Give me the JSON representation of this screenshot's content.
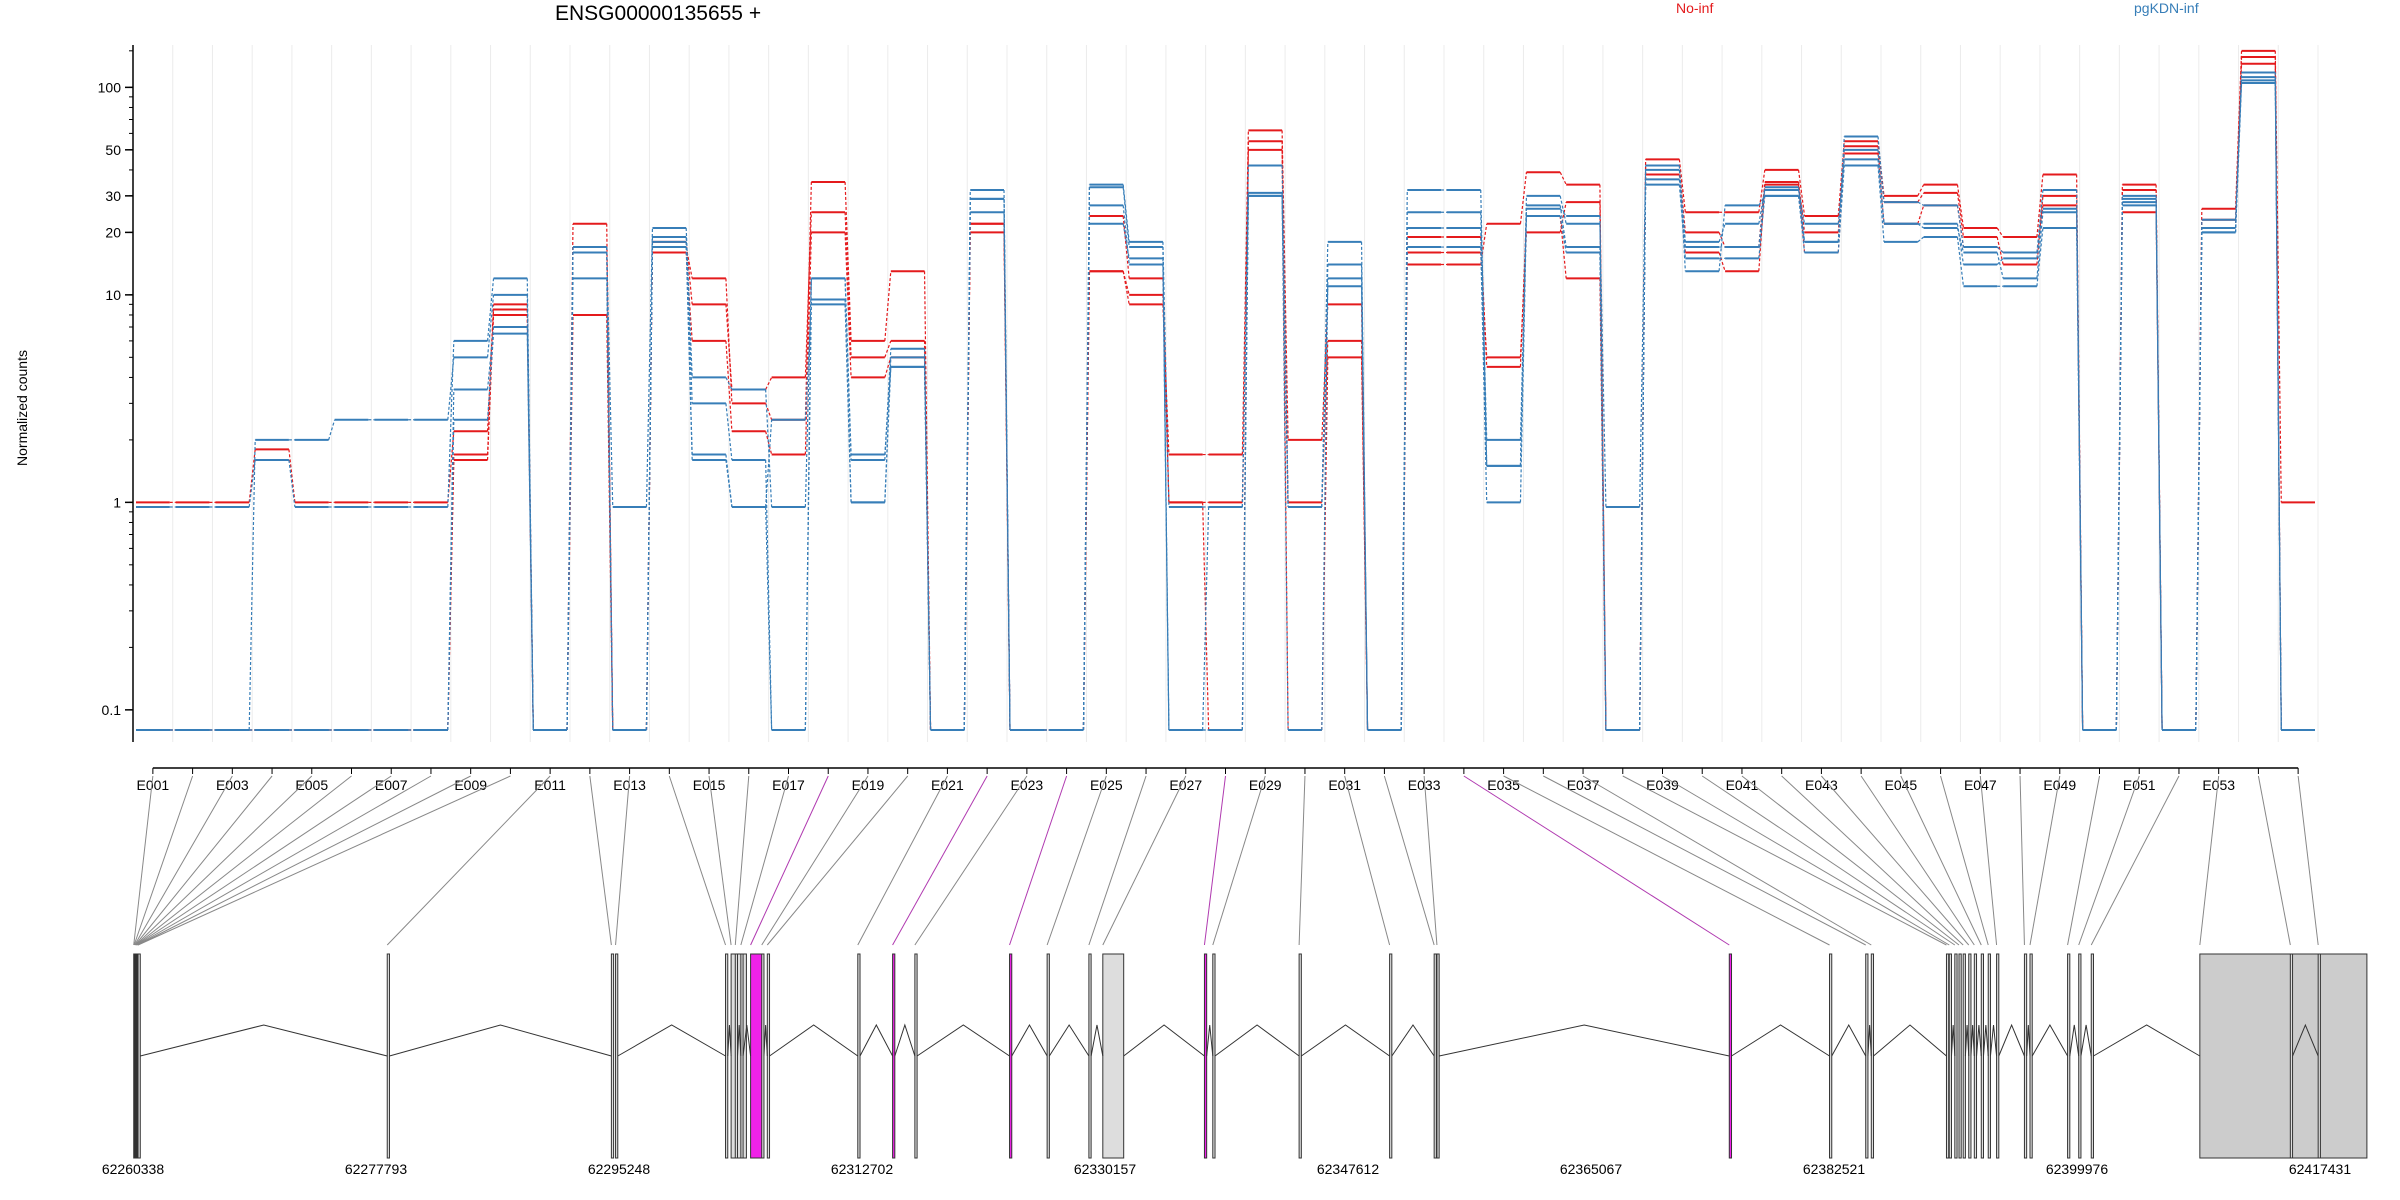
{
  "chart_data": {
    "type": "line",
    "title": "ENSG00000135655 +",
    "ylabel": "Normalized counts",
    "yscale": "log",
    "ylim": [
      0.07,
      160
    ],
    "y_ticks": [
      {
        "value": 0.1,
        "label": "0.1"
      },
      {
        "value": 1,
        "label": "1"
      },
      {
        "value": 10,
        "label": "10"
      },
      {
        "value": 20,
        "label": "20"
      },
      {
        "value": 30,
        "label": "30"
      },
      {
        "value": 50,
        "label": "50"
      },
      {
        "value": 100,
        "label": "100"
      }
    ],
    "x_tick_labels": [
      "E001",
      "E003",
      "E005",
      "E007",
      "E009",
      "E011",
      "E013",
      "E015",
      "E017",
      "E019",
      "E021",
      "E023",
      "E025",
      "E027",
      "E029",
      "E031",
      "E033",
      "E035",
      "E037",
      "E039",
      "E041",
      "E043",
      "E045",
      "E047",
      "E049",
      "E051",
      "E053"
    ],
    "legend": [
      {
        "name": "No-inf",
        "color": "#E41A1C"
      },
      {
        "name": "pgKDN-inf",
        "color": "#377EB8"
      }
    ],
    "series": [
      {
        "name": "No-inf",
        "color": "#E41A1C",
        "values": [
          1,
          1,
          1,
          1.8,
          1,
          1,
          1,
          1,
          2.2,
          9,
          0.08,
          22,
          0.08,
          17,
          12,
          3,
          2.5,
          35,
          6,
          13,
          0.08,
          22,
          0.08,
          0.08,
          13,
          9,
          1.7,
          1.7,
          62,
          2,
          9,
          0.08,
          14,
          14,
          22,
          39,
          34,
          0.08,
          45,
          25,
          25,
          40,
          24,
          55,
          30,
          34,
          21,
          19,
          38,
          0.08,
          34,
          0.08,
          26,
          150,
          1
        ]
      },
      {
        "name": "No-inf",
        "color": "#E41A1C",
        "values": [
          0.08,
          0.08,
          0.08,
          0.08,
          0.08,
          0.08,
          0.08,
          0.08,
          1.7,
          8.5,
          0.08,
          17,
          0.08,
          18,
          9,
          3.5,
          4,
          25,
          5,
          6,
          0.08,
          20,
          0.08,
          0.08,
          24,
          12,
          1,
          1,
          50,
          1,
          6,
          0.08,
          16,
          16,
          5,
          20,
          28,
          0.08,
          42,
          20,
          17,
          35,
          20,
          52,
          28,
          31,
          19,
          14,
          30,
          0.08,
          32,
          0.08,
          23,
          140,
          0.08
        ]
      },
      {
        "name": "No-inf",
        "color": "#E41A1C",
        "values": [
          0.08,
          0.08,
          0.08,
          0.08,
          0.08,
          0.08,
          0.08,
          0.08,
          1.6,
          8,
          0.08,
          8,
          0.08,
          16,
          6,
          2.2,
          1.7,
          20,
          4,
          5,
          0.08,
          22,
          0.08,
          0.08,
          13,
          10,
          1,
          0.08,
          55,
          0.08,
          5,
          0.08,
          19,
          19,
          4.5,
          24,
          12,
          0.08,
          38,
          16,
          13,
          34,
          16,
          48,
          22,
          27,
          17,
          16,
          27,
          0.08,
          25,
          0.08,
          21,
          130,
          0.08
        ]
      },
      {
        "name": "pgKDN-inf",
        "color": "#377EB8",
        "values": [
          0.95,
          0.95,
          0.95,
          1.6,
          0.95,
          0.95,
          0.95,
          0.95,
          6,
          12,
          0.08,
          17,
          0.95,
          21,
          4,
          3.5,
          0.95,
          12,
          1.6,
          5.5,
          0.08,
          32,
          0.08,
          0.08,
          34,
          18,
          0.95,
          0.95,
          30,
          0.95,
          18,
          0.08,
          32,
          32,
          1.5,
          30,
          22,
          0.95,
          42,
          13,
          27,
          30,
          18,
          58,
          28,
          27,
          17,
          16,
          32,
          0.08,
          30,
          0.08,
          21,
          118,
          0.08
        ]
      },
      {
        "name": "pgKDN-inf",
        "color": "#377EB8",
        "values": [
          0.08,
          0.08,
          0.08,
          2,
          2,
          2.5,
          2.5,
          2.5,
          5,
          10,
          0.08,
          16,
          0.08,
          17,
          1.7,
          0.95,
          2.5,
          9,
          1,
          5,
          0.08,
          29,
          0.08,
          0.08,
          33,
          17,
          0.08,
          0.95,
          42,
          0.95,
          14,
          0.08,
          25,
          25,
          2,
          26,
          24,
          0.08,
          40,
          18,
          22,
          32,
          22,
          45,
          22,
          22,
          14,
          15,
          26,
          0.08,
          29,
          0.08,
          20,
          112,
          0.08
        ]
      },
      {
        "name": "pgKDN-inf",
        "color": "#377EB8",
        "values": [
          0.08,
          0.08,
          0.08,
          0.08,
          0.08,
          0.08,
          0.08,
          0.08,
          3.5,
          7,
          0.08,
          12,
          0.08,
          19,
          3,
          1.6,
          0.08,
          12,
          1.7,
          4.5,
          0.08,
          29,
          0.08,
          0.08,
          27,
          14,
          0.08,
          0.08,
          30,
          0.95,
          11,
          0.08,
          21,
          21,
          1.5,
          27,
          17,
          0.08,
          36,
          17,
          17,
          33,
          18,
          50,
          22,
          21,
          16,
          12,
          25,
          0.08,
          28,
          0.08,
          20,
          105,
          0.08
        ]
      },
      {
        "name": "pgKDN-inf",
        "color": "#377EB8",
        "values": [
          0.08,
          0.08,
          0.08,
          0.08,
          0.08,
          0.08,
          0.08,
          0.08,
          2.5,
          6.5,
          0.08,
          17,
          0.08,
          18,
          1.6,
          0.95,
          0.08,
          9.5,
          1,
          4.5,
          0.08,
          25,
          0.08,
          0.08,
          22,
          15,
          0.08,
          0.08,
          31,
          0.08,
          12,
          0.08,
          17,
          17,
          1,
          24,
          16,
          0.08,
          34,
          15,
          15,
          30,
          16,
          42,
          18,
          19,
          11,
          11,
          21,
          0.08,
          27,
          0.08,
          23,
          108,
          0.08
        ]
      }
    ],
    "genomic_coordinate_labels": [
      "62260338",
      "62277793",
      "62295248",
      "62312702",
      "62330157",
      "62347612",
      "62365067",
      "62382521",
      "62399976",
      "62417431"
    ]
  }
}
